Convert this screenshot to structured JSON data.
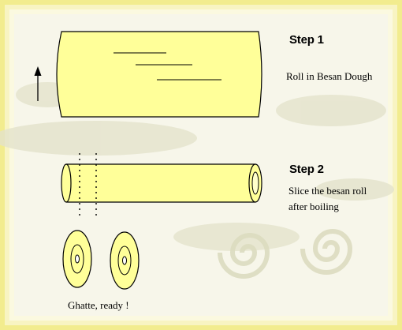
{
  "colors": {
    "background": "#f7f6ea",
    "border": "#f2ec8e",
    "texture": "#dcdcc0",
    "dough": "#ffff99",
    "outline": "#000000"
  },
  "steps": [
    {
      "title": "Step 1",
      "text": "Roll in Besan Dough"
    },
    {
      "title": "Step 2",
      "text_lines": [
        "Slice the besan roll",
        "after boiling"
      ]
    }
  ],
  "caption": "Ghatte, ready !"
}
